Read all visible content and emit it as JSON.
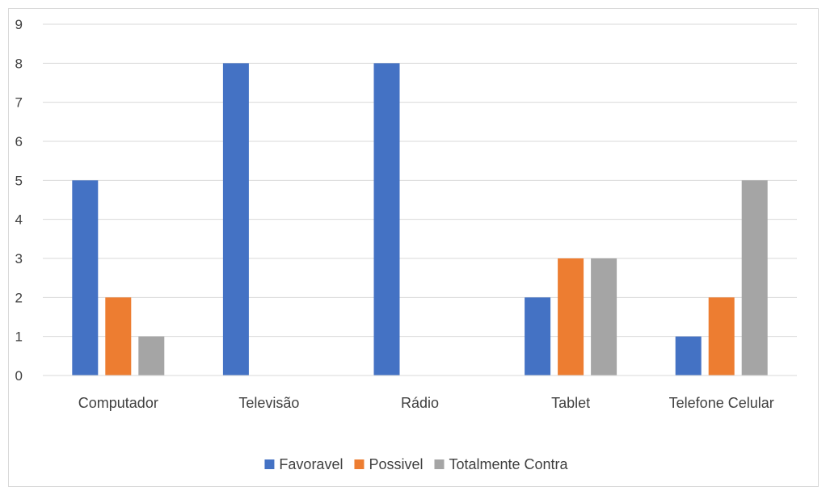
{
  "chart_data": {
    "type": "bar",
    "categories": [
      "Computador",
      "Televisão",
      "Rádio",
      "Tablet",
      "Telefone Celular"
    ],
    "series": [
      {
        "name": "Favoravel",
        "values": [
          5,
          8,
          8,
          2,
          1
        ],
        "color": "#4472c4"
      },
      {
        "name": "Possivel",
        "values": [
          2,
          0,
          0,
          3,
          2
        ],
        "color": "#ed7d31"
      },
      {
        "name": "Totalmente Contra",
        "values": [
          1,
          0,
          0,
          3,
          5
        ],
        "color": "#a5a5a5"
      }
    ],
    "ylim": [
      0,
      9
    ],
    "yticks": [
      0,
      1,
      2,
      3,
      4,
      5,
      6,
      7,
      8,
      9
    ],
    "grid": true,
    "legend_position": "bottom"
  }
}
